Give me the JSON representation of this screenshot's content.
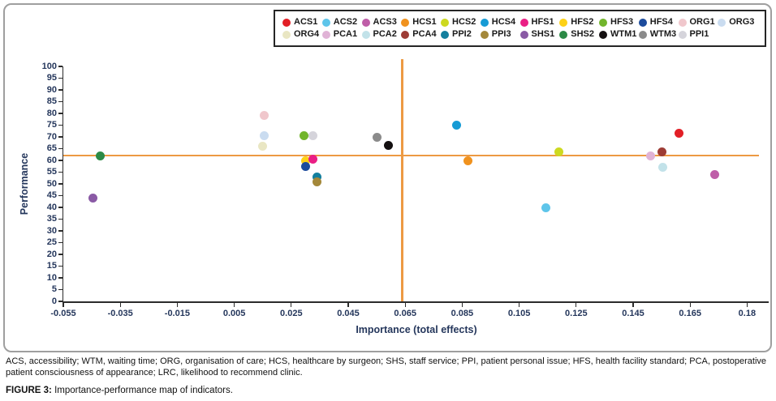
{
  "figure": {
    "caption_abbrev": "ACS, accessibility; WTM, waiting time; ORG, organisation of care; HCS, healthcare by surgeon; SHS, staff service; PPI, patient personal issue; HFS, health facility standard; PCA, postoperative patient consciousness of appearance; LRC, likelihood to recommend clinic.",
    "caption_label": "FIGURE 3:",
    "caption_text": " Importance-performance map of indicators."
  },
  "colors": {
    "reference_line_orange": "#ED9A43",
    "axis_text": "#25375C"
  },
  "chart_data": {
    "type": "scatter",
    "title": "",
    "xlabel": "Importance (total effects)",
    "ylabel": "Performance",
    "xlim": [
      -0.055,
      0.185
    ],
    "ylim": [
      0,
      100
    ],
    "x_tick_labels": [
      "-0.055",
      "-0.035",
      "-0.015",
      "0.005",
      "0.025",
      "0.045",
      "0.065",
      "0.085",
      "0.105",
      "0.125",
      "0.145",
      "0.165",
      "0.18"
    ],
    "y_ticks": [
      0,
      5,
      10,
      15,
      20,
      25,
      30,
      35,
      40,
      45,
      50,
      55,
      60,
      65,
      70,
      75,
      80,
      85,
      90,
      95,
      100
    ],
    "grid": false,
    "legend_position": "top",
    "reference_lines": {
      "horizontal_y": 62,
      "vertical_x": 0.064
    },
    "series": [
      {
        "name": "ACS1",
        "color": "#E21F26",
        "x": 0.161,
        "y": 71.5
      },
      {
        "name": "ACS2",
        "color": "#5EC5EA",
        "x": 0.1145,
        "y": 40
      },
      {
        "name": "ACS3",
        "color": "#BF5EA8",
        "x": 0.1735,
        "y": 54
      },
      {
        "name": "HCS1",
        "color": "#F0921E",
        "x": 0.087,
        "y": 60
      },
      {
        "name": "HCS2",
        "color": "#CDD920",
        "x": 0.119,
        "y": 63.5
      },
      {
        "name": "HCS4",
        "color": "#169BD5",
        "x": 0.083,
        "y": 75
      },
      {
        "name": "HFS1",
        "color": "#EA1F85",
        "x": 0.0325,
        "y": 60.5
      },
      {
        "name": "HFS2",
        "color": "#FDD116",
        "x": 0.03,
        "y": 60
      },
      {
        "name": "HFS3",
        "color": "#72B52C",
        "x": 0.0295,
        "y": 70.5
      },
      {
        "name": "HFS4",
        "color": "#1C4B9C",
        "x": 0.03,
        "y": 57.5
      },
      {
        "name": "ORG1",
        "color": "#F0C7CC",
        "x": 0.0155,
        "y": 79
      },
      {
        "name": "ORG3",
        "color": "#CADCF0",
        "x": 0.0155,
        "y": 70.5
      },
      {
        "name": "ORG4",
        "color": "#E9E6C3",
        "x": 0.015,
        "y": 66
      },
      {
        "name": "PCA1",
        "color": "#E0B3D6",
        "x": 0.151,
        "y": 62
      },
      {
        "name": "PCA2",
        "color": "#C2E2E9",
        "x": 0.1555,
        "y": 57
      },
      {
        "name": "PCA4",
        "color": "#9D3C35",
        "x": 0.155,
        "y": 63.5
      },
      {
        "name": "PPI2",
        "color": "#137F9E",
        "x": 0.034,
        "y": 53
      },
      {
        "name": "PPI3",
        "color": "#A4883A",
        "x": 0.034,
        "y": 51
      },
      {
        "name": "SHS1",
        "color": "#8A5AA5",
        "x": -0.0445,
        "y": 44
      },
      {
        "name": "SHS2",
        "color": "#2C8A46",
        "x": -0.042,
        "y": 62
      },
      {
        "name": "WTM1",
        "color": "#141011",
        "x": 0.059,
        "y": 66.5
      },
      {
        "name": "WTM3",
        "color": "#8B8B8B",
        "x": 0.055,
        "y": 70
      },
      {
        "name": "PPI1",
        "color": "#D5D4DB",
        "x": 0.0325,
        "y": 70.5
      }
    ]
  }
}
